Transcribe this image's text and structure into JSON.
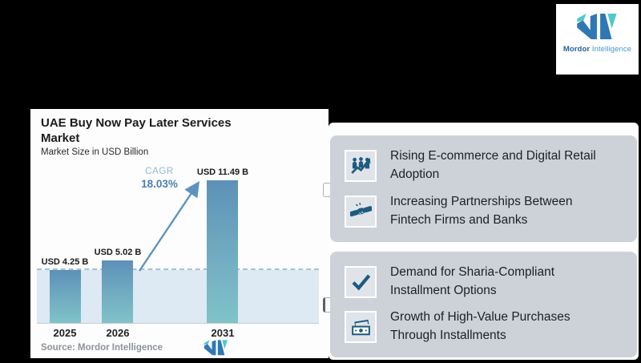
{
  "page": {
    "background": "#000000"
  },
  "logo_card": {
    "brand_bold": "Mordor",
    "brand_light": "Intelligence"
  },
  "chart_card": {
    "title": "UAE Buy Now Pay Later Services Market",
    "subtitle": "Market Size in USD Billion",
    "cagr_label": "CAGR",
    "cagr_value": "18.03%",
    "source": "Source: Mordor Intelligence"
  },
  "chart_data": {
    "type": "bar",
    "title": "UAE Buy Now Pay Later Services Market",
    "subtitle": "Market Size in USD Billion",
    "unit": "USD Billion",
    "categories": [
      "2025",
      "2026",
      "2031"
    ],
    "values": [
      4.25,
      5.02,
      11.49
    ],
    "value_labels": [
      "USD 4.25 B",
      "USD 5.02 B",
      "USD 11.49 B"
    ],
    "cagr_percent": 18.03,
    "annotations": [
      "CAGR 18.03%",
      "dashed reference line at 2025 market-size level",
      "growth arrow from 2026 bar to 2031 bar"
    ],
    "source": "Source: Mordor Intelligence",
    "ylim": [
      0,
      12
    ],
    "grid": false,
    "legend": false
  },
  "drivers": [
    {
      "icon": "team-growth-icon",
      "label": "Rising E-commerce and Digital Retail Adoption"
    },
    {
      "icon": "handshake-icon",
      "label": "Increasing Partnerships Between Fintech Firms and Banks"
    },
    {
      "icon": "checkmark-icon",
      "label": "Demand for Sharia-Compliant Installment Options"
    },
    {
      "icon": "banknote-icon",
      "label": "Growth of High-Value Purchases Through Installments"
    }
  ],
  "colors": {
    "bar_top": "#5d90b8",
    "bar_bottom": "#80c3c8",
    "band_fill": "#dde9f3",
    "dashed_line": "#a3c3d9",
    "arrow": "#5e93bf",
    "cagr_label": "#93b7d6",
    "cagr_value": "#4d7fae",
    "driver_card": "#cdd2d9",
    "icon_blue": "#1d5b80",
    "logo_blue": "#3078b4",
    "logo_teal": "#4fc8ce",
    "source_text": "#8d929a"
  }
}
